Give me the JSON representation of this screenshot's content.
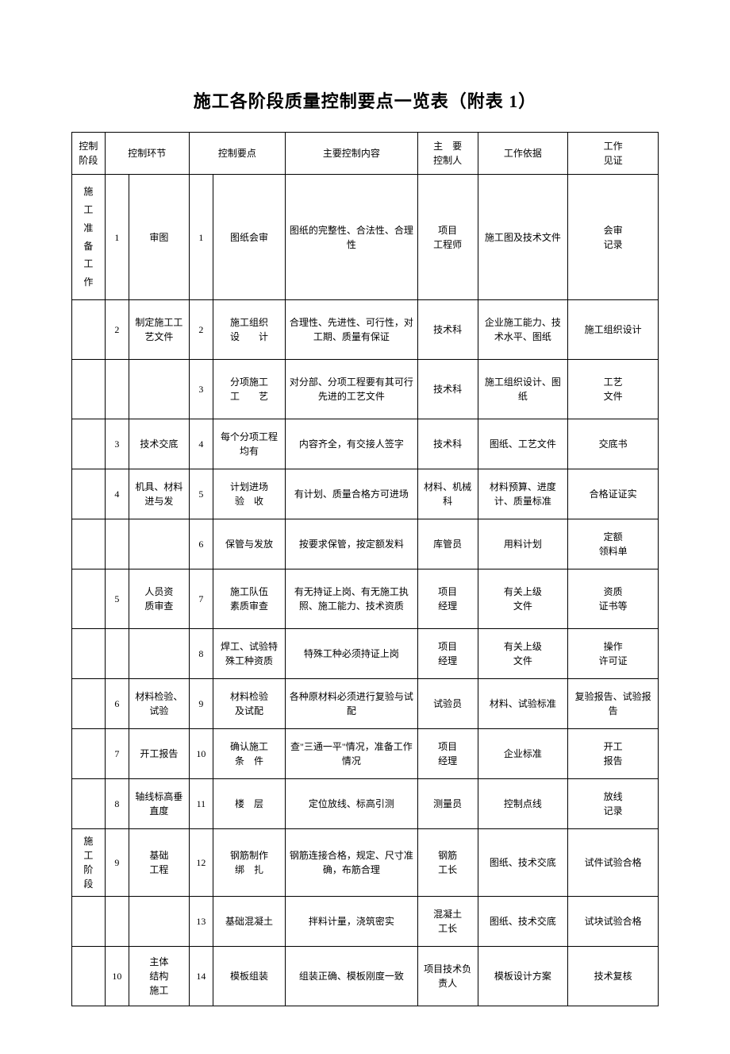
{
  "title": "施工各阶段质量控制要点一览表（附表 1）",
  "headers": {
    "h1": "控制\n阶段",
    "h2": "控制环节",
    "h3": "控制要点",
    "h4": "主要控制内容",
    "h5": "主　要\n控制人",
    "h6": "工作依据",
    "h7": "工作\n见证"
  },
  "stageA": "施工准备工作",
  "stageB": "施\n工\n阶\n段",
  "rows": [
    {
      "a": "1",
      "b": "审图",
      "c": "1",
      "d": "图纸会审",
      "e": "图纸的完整性、合法性、合理性",
      "f": "项目\n工程师",
      "g": "施工图及技术文件",
      "h": "会审\n记录"
    },
    {
      "a": "2",
      "b": "制定施工工艺文件",
      "c": "2",
      "d": "施工组织\n设　　计",
      "e": "合理性、先进性、可行性，对工期、质量有保证",
      "f": "技术科",
      "g": "企业施工能力、技术水平、图纸",
      "h": "施工组织设计"
    },
    {
      "a": "",
      "b": "",
      "c": "3",
      "d": "分项施工\n工　　艺",
      "e": "对分部、分项工程要有其可行先进的工艺文件",
      "f": "技术科",
      "g": "施工组织设计、图纸",
      "h": "工艺\n文件"
    },
    {
      "a": "3",
      "b": "技术交底",
      "c": "4",
      "d": "每个分项工程均有",
      "e": "内容齐全，有交接人签字",
      "f": "技术科",
      "g": "图纸、工艺文件",
      "h": "交底书"
    },
    {
      "a": "4",
      "b": "机具、材料进与发",
      "c": "5",
      "d": "计划进场\n验　收",
      "e": "有计划、质量合格方可进场",
      "f": "材料、机械科",
      "g": "材料预算、进度计、质量标准",
      "h": "合格证证实"
    },
    {
      "a": "",
      "b": "",
      "c": "6",
      "d": "保管与发放",
      "e": "按要求保管，按定额发料",
      "f": "库管员",
      "g": "用料计划",
      "h": "定额\n领料单"
    },
    {
      "a": "5",
      "b": "人员资\n质审查",
      "c": "7",
      "d": "施工队伍\n素质审查",
      "e": "有无持证上岗、有无施工执照、施工能力、技术资质",
      "f": "项目\n经理",
      "g": "有关上级\n文件",
      "h": "资质\n证书等"
    },
    {
      "a": "",
      "b": "",
      "c": "8",
      "d": "焊工、试验特殊工种资质",
      "e": "特殊工种必须持证上岗",
      "f": "项目\n经理",
      "g": "有关上级\n文件",
      "h": "操作\n许可证"
    },
    {
      "a": "6",
      "b": "材料检验、试验",
      "c": "9",
      "d": "材料检验\n及试配",
      "e": "各种原材料必须进行复验与试配",
      "f": "试验员",
      "g": "材料、试验标准",
      "h": "复验报告、试验报告"
    },
    {
      "a": "7",
      "b": "开工报告",
      "c": "10",
      "d": "确认施工\n条　件",
      "e": "查\"三通一平\"情况，准备工作情况",
      "f": "项目\n经理",
      "g": "企业标准",
      "h": "开工\n报告"
    },
    {
      "a": "8",
      "b": "轴线标高垂直度",
      "c": "11",
      "d": "楼　层",
      "e": "定位放线、标高引测",
      "f": "测量员",
      "g": "控制点线",
      "h": "放线\n记录"
    },
    {
      "a": "9",
      "b": "基础\n工程",
      "c": "12",
      "d": "钢筋制作\n绑　扎",
      "e": "钢筋连接合格，规定、尺寸准确，布筋合理",
      "f": "钢筋\n工长",
      "g": "图纸、技术交底",
      "h": "试件试验合格"
    },
    {
      "a": "",
      "b": "",
      "c": "13",
      "d": "基础混凝土",
      "e": "拌料计量，浇筑密实",
      "f": "混凝土\n工长",
      "g": "图纸、技术交底",
      "h": "试块试验合格"
    },
    {
      "a": "10",
      "b": "主体\n结构\n施工",
      "c": "14",
      "d": "模板组装",
      "e": "组装正确、模板刚度一致",
      "f": "项目技术负责人",
      "g": "模板设计方案",
      "h": "技术复核"
    }
  ],
  "style": {
    "font_main": "SimSun",
    "font_size_title": 22,
    "font_size_cell": 12,
    "border_color": "#000000",
    "background": "#ffffff",
    "text_color": "#000000"
  }
}
